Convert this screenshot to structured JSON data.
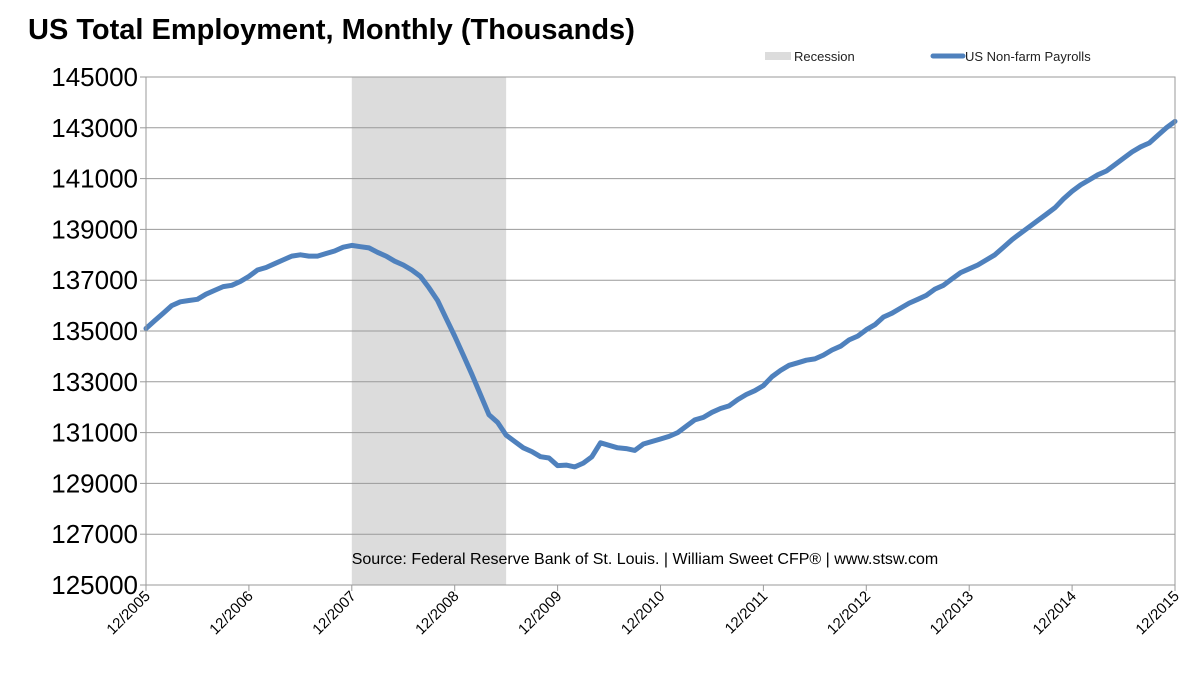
{
  "chart_data": {
    "type": "line",
    "title": "US Total Employment, Monthly (Thousands)",
    "source": "Source: Federal Reserve Bank of St. Louis. | William Sweet CFP® | www.stsw.com",
    "ylim": [
      125000,
      145000
    ],
    "yticks": [
      "145000",
      "143000",
      "141000",
      "139000",
      "137000",
      "135000",
      "133000",
      "131000",
      "129000",
      "127000",
      "125000"
    ],
    "xticks": [
      "12/2005",
      "12/2006",
      "12/2007",
      "12/2008",
      "12/2009",
      "12/2010",
      "12/2011",
      "12/2012",
      "12/2013",
      "12/2014",
      "12/2015"
    ],
    "grid": true,
    "legend_position": "top-right",
    "recession": {
      "label": "Recession",
      "start": "12/2007",
      "end": "06/2009",
      "color": "#dcdcdc"
    },
    "series": [
      {
        "name": "US Non-farm Payrolls",
        "color": "#4f81bd",
        "start": "12/2005",
        "values": [
          135100,
          135400,
          135700,
          136000,
          136150,
          136200,
          136250,
          136450,
          136600,
          136750,
          136800,
          136950,
          137150,
          137400,
          137500,
          137650,
          137800,
          137950,
          138000,
          137950,
          137950,
          138050,
          138150,
          138300,
          138370,
          138320,
          138270,
          138100,
          137950,
          137750,
          137600,
          137400,
          137150,
          136700,
          136200,
          135500,
          134800,
          134050,
          133300,
          132500,
          131700,
          131400,
          130900,
          130650,
          130400,
          130250,
          130050,
          130000,
          129700,
          129720,
          129650,
          129800,
          130050,
          130600,
          130500,
          130400,
          130370,
          130300,
          130550,
          130650,
          130750,
          130850,
          131000,
          131250,
          131500,
          131600,
          131800,
          131950,
          132050,
          132300,
          132500,
          132650,
          132850,
          133200,
          133450,
          133650,
          133750,
          133850,
          133900,
          134050,
          134250,
          134400,
          134650,
          134800,
          135050,
          135250,
          135550,
          135700,
          135900,
          136100,
          136250,
          136400,
          136650,
          136800,
          137050,
          137300,
          137450,
          137600,
          137800,
          138000,
          138300,
          138600,
          138850,
          139100,
          139350,
          139600,
          139850,
          140200,
          140500,
          140750,
          140950,
          141150,
          141300,
          141550,
          141800,
          142050,
          142250,
          142400,
          142700,
          143000,
          143250
        ]
      }
    ]
  }
}
